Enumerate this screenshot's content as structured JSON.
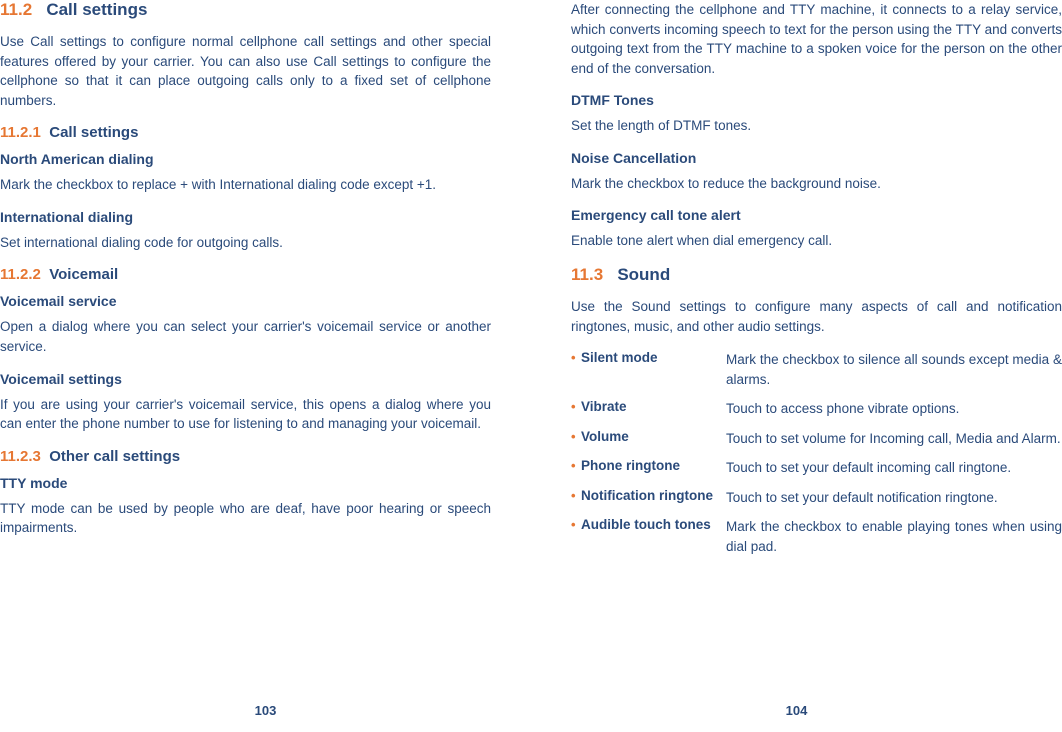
{
  "left": {
    "h1_num": "11.2",
    "h1_title": "Call settings",
    "intro": "Use Call settings to configure normal cellphone call settings and other special features offered by your carrier. You can also use Call settings to configure the cellphone so that it can place outgoing calls only to a fixed set of cellphone numbers.",
    "s1_num": "11.2.1",
    "s1_title": "Call settings",
    "s1_t1_h": "North American dialing",
    "s1_t1_b": "Mark the checkbox to replace + with International dialing code except +1.",
    "s1_t2_h": "International dialing",
    "s1_t2_b": "Set international dialing code for outgoing calls.",
    "s2_num": "11.2.2",
    "s2_title": "Voicemail",
    "s2_t1_h": "Voicemail service",
    "s2_t1_b": "Open a dialog where you can select your carrier's voicemail service or another service.",
    "s2_t2_h": "Voicemail settings",
    "s2_t2_b": "If you are using your carrier's voicemail service, this opens a dialog where you can enter the phone number to use for listening to and managing your voicemail.",
    "s3_num": "11.2.3",
    "s3_title": "Other call settings",
    "s3_t1_h": "TTY mode",
    "s3_t1_b": "TTY mode can be used by people who are deaf, have poor hearing or speech impairments.",
    "page_num": "103"
  },
  "right": {
    "tty_cont": "After connecting the cellphone and TTY machine, it connects to a relay service, which converts incoming speech to text for the person using the TTY and converts outgoing text from the TTY machine to a spoken voice for the person on the other end of the conversation.",
    "t1_h": "DTMF Tones",
    "t1_b": "Set the length of DTMF tones.",
    "t2_h": "Noise Cancellation",
    "t2_b": "Mark the checkbox to reduce the background noise.",
    "t3_h": "Emergency call tone alert",
    "t3_b": "Enable tone alert when dial emergency call.",
    "h1_num": "11.3",
    "h1_title": "Sound",
    "intro": "Use the Sound settings to configure many aspects of call and notification ringtones, music, and other audio settings.",
    "options": [
      {
        "name": "Silent mode",
        "desc": "Mark the checkbox to silence all sounds except media & alarms."
      },
      {
        "name": "Vibrate",
        "desc": "Touch to access phone vibrate options."
      },
      {
        "name": "Volume",
        "desc": "Touch to set volume for Incoming call, Media and Alarm."
      },
      {
        "name": "Phone ringtone",
        "desc": "Touch to set your default incoming call ringtone."
      },
      {
        "name": "Notification ringtone",
        "desc": "Touch to set your default notification ringtone."
      },
      {
        "name": "Audible touch tones",
        "desc": "Mark the checkbox to enable playing tones when using dial pad."
      }
    ],
    "page_num": "104"
  }
}
